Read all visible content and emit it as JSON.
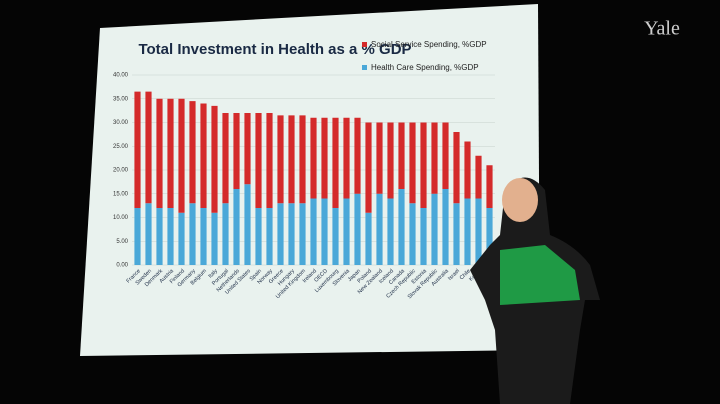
{
  "watermark": "Yale",
  "chart_data": {
    "type": "stacked-bar",
    "title": "Total Investment in Health as a % GDP",
    "categories": [
      "France",
      "Sweden",
      "Denmark",
      "Austria",
      "Finland",
      "Germany",
      "Belgium",
      "Italy",
      "Portugal",
      "Netherlands",
      "United States",
      "Spain",
      "Norway",
      "Greece",
      "Hungary",
      "United Kingdom",
      "Ireland",
      "OECD",
      "Luxembourg",
      "Slovenia",
      "Japan",
      "Poland",
      "New Zealand",
      "Iceland",
      "Canada",
      "Czech Republic",
      "Estonia",
      "Slovak Republic",
      "Australia",
      "Israel",
      "Chile",
      "Korea",
      "Mexico"
    ],
    "series": [
      {
        "name": "Health Care Spending, %GDP",
        "color": "#4aa8d8",
        "values": [
          12,
          13,
          12,
          12,
          11,
          13,
          12,
          11,
          13,
          16,
          17,
          12,
          12,
          13,
          13,
          13,
          14,
          14,
          12,
          14,
          15,
          11,
          15,
          14,
          16,
          13,
          12,
          15,
          16,
          13,
          14,
          14,
          12
        ]
      },
      {
        "name": "Social Service Spending, %GDP",
        "color": "#d42a2a",
        "values": [
          24.5,
          23.5,
          23,
          23,
          24,
          21.5,
          22,
          22.5,
          19,
          16,
          15,
          20,
          20,
          18.5,
          18.5,
          18.5,
          17,
          17,
          19,
          17,
          16,
          19,
          15,
          16,
          14,
          17,
          18,
          15,
          14,
          15,
          12,
          9,
          9
        ]
      }
    ],
    "ylim": [
      0,
      40
    ],
    "yticks": [
      {
        "value": 0,
        "label": "0.00"
      },
      {
        "value": 5,
        "label": "5.00"
      },
      {
        "value": 10,
        "label": "10.00"
      },
      {
        "value": 15,
        "label": "15.00"
      },
      {
        "value": 20,
        "label": "20.00"
      },
      {
        "value": 25,
        "label": "25.00"
      },
      {
        "value": 30,
        "label": "30.00"
      },
      {
        "value": 35,
        "label": "35.00"
      },
      {
        "value": 40,
        "label": "40.00"
      }
    ],
    "grid": true
  }
}
